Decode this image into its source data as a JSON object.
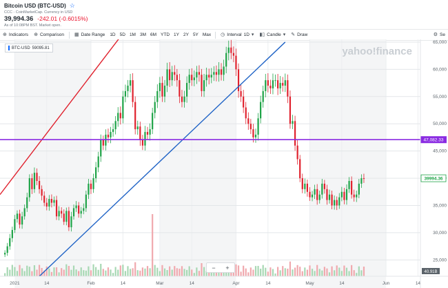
{
  "header": {
    "title": "Bitcoin USD (BTC-USD)",
    "subtitle": "CCC - CoinMarketCap. Currency in USD",
    "price": "39,994.36",
    "change": "-242.01 (-0.6015%)",
    "market_status": "As of 10:08PM BST. Market open."
  },
  "toolbar": {
    "indicators": "Indicators",
    "comparison": "Comparison",
    "date_range": "Date Range",
    "ranges": [
      "1D",
      "5D",
      "1M",
      "3M",
      "6M",
      "YTD",
      "1Y",
      "2Y",
      "5Y",
      "Max"
    ],
    "interval_label": "Interval",
    "interval_value": "1D",
    "chart_type": "Candle",
    "draw": "Draw",
    "settings": "Se"
  },
  "legend": {
    "symbol": "BTC-USD",
    "value": "59095.81"
  },
  "watermark": "yahoo!finance",
  "zoom": {
    "minus": "−",
    "plus": "+"
  },
  "colors": {
    "up": "#1ea347",
    "down": "#e0222e",
    "channel_upper": "#e0222e",
    "channel_lower": "#1f63c6",
    "level_line": "#8a2be2",
    "accent": "#0f69ff"
  },
  "chart_data": {
    "type": "candlestick",
    "y_axis": {
      "ticks": [
        25000,
        30000,
        35000,
        40000,
        45000,
        50000,
        55000,
        60000,
        65000
      ],
      "tick_labels": [
        "25,000",
        "30,000",
        "35,000",
        "40,000",
        "45,000",
        "50,000",
        "55,000",
        "60,000",
        "65,000"
      ],
      "ylim": [
        22000,
        65500
      ]
    },
    "x_axis": {
      "ticks": [
        "2021-01-01",
        "2021-01-14",
        "2021-02-01",
        "2021-02-14",
        "2021-03-01",
        "2021-03-14",
        "2021-04-01",
        "2021-04-14",
        "2021-05-01",
        "2021-05-14",
        "2021-06-01",
        "2021-06-14"
      ],
      "tick_labels": [
        "2021",
        "14",
        "Feb",
        "14",
        "Mar",
        "14",
        "Apr",
        "14",
        "May",
        "14",
        "Jun",
        "14"
      ],
      "xlim": [
        "2020-12-26",
        "2021-06-15"
      ]
    },
    "horizontal_line": {
      "value": 47082.33,
      "label": "47,082.33"
    },
    "current_price": {
      "value": 39994.36,
      "label": "39994.36"
    },
    "volume_label": "40.91B",
    "trendlines": [
      {
        "name": "upper channel",
        "from": [
          "2020-12-26",
          37000
        ],
        "to": [
          "2021-02-13",
          66000
        ]
      },
      {
        "name": "lower channel",
        "from": [
          "2021-01-11",
          22000
        ],
        "to": [
          "2021-04-21",
          65000
        ]
      }
    ],
    "series": [
      {
        "name": "BTC-USD",
        "closes": [
          26300,
          27500,
          29000,
          30500,
          32500,
          33500,
          31500,
          33000,
          34500,
          36500,
          40000,
          38000,
          41000,
          39500,
          38000,
          36800,
          35500,
          34800,
          36200,
          35500,
          36000,
          33000,
          34000,
          33500,
          32000,
          34000,
          31000,
          33000,
          34500,
          35000,
          33500,
          34000,
          34500,
          37000,
          39000,
          38000,
          40000,
          42000,
          44000,
          47000,
          46000,
          48000,
          47500,
          48500,
          49000,
          50500,
          52000,
          51000,
          55000,
          56000,
          57000,
          58000,
          54000,
          49000,
          49500,
          47000,
          46000,
          48500,
          48000,
          49000,
          52000,
          54000,
          56000,
          57500,
          55000,
          57000,
          60000,
          58000,
          59500,
          59000,
          58000,
          55000,
          54000,
          55000,
          57500,
          59000,
          58000,
          58500,
          59500,
          59000,
          56000,
          58000,
          59000,
          58500,
          59000,
          59500,
          59000,
          60000,
          59000,
          60500,
          63000,
          64000,
          63000,
          62500,
          60000,
          56000,
          55000,
          53000,
          51000,
          50000,
          49000,
          47500,
          48000,
          51000,
          54000,
          56000,
          58000,
          57000,
          56500,
          58000,
          58000,
          56500,
          57500,
          57000,
          58000,
          55000,
          50000,
          50500,
          46000,
          43500,
          40000,
          38000,
          39000,
          37500,
          36500,
          37000,
          38000,
          36000,
          37000,
          39000,
          38000,
          36000,
          37000,
          35000,
          36000,
          35000,
          36500,
          37500,
          36000,
          38000,
          39500,
          37000,
          36500,
          37000,
          39000,
          40000,
          39994
        ]
      }
    ]
  }
}
